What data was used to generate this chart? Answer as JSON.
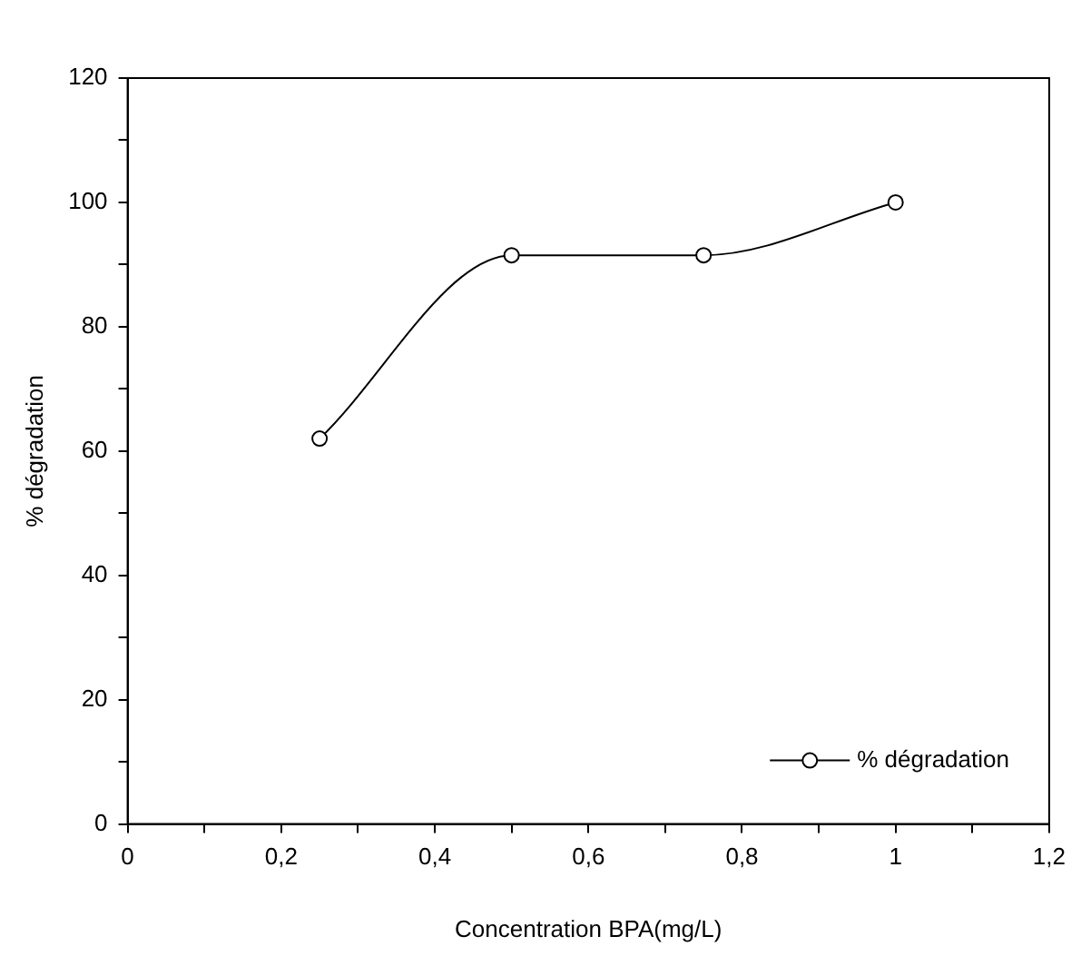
{
  "chart_data": {
    "type": "line",
    "xlabel": "Concentration BPA(mg/L)",
    "ylabel": "% dégradation",
    "x": [
      0.25,
      0.5,
      0.75,
      1
    ],
    "series": [
      {
        "name": "% dégradation",
        "color": "#000000",
        "values": [
          62,
          91.5,
          91.5,
          100
        ]
      }
    ],
    "xlim": [
      0,
      1.2
    ],
    "xticks": [
      0,
      {
        "value": 0.1,
        "label": null
      },
      {
        "value": 0.2,
        "label": "0,2"
      },
      {
        "value": 0.3,
        "label": null
      },
      {
        "value": 0.4,
        "label": "0,4"
      },
      {
        "value": 0.5,
        "label": null
      },
      {
        "value": 0.6,
        "label": "0,6"
      },
      {
        "value": 0.7,
        "label": null
      },
      {
        "value": 0.8,
        "label": "0,8"
      },
      {
        "value": 0.9,
        "label": null
      },
      1,
      {
        "value": 1.1,
        "label": null
      },
      {
        "value": 1.2,
        "label": "1,2"
      }
    ],
    "ylim": [
      0,
      120
    ],
    "yticks": [
      0,
      {
        "value": 10,
        "label": null
      },
      20,
      {
        "value": 30,
        "label": null
      },
      40,
      {
        "value": 50,
        "label": null
      },
      60,
      {
        "value": 70,
        "label": null
      },
      80,
      {
        "value": 90,
        "label": null
      },
      100,
      {
        "value": 110,
        "label": null
      },
      120
    ],
    "grid": false,
    "legend": "bottom right",
    "marker": "circle",
    "line_style": "solid"
  }
}
